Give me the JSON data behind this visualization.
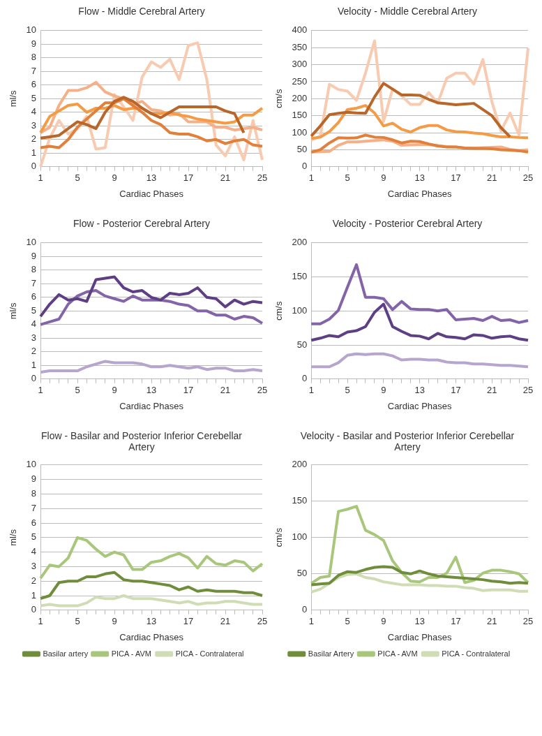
{
  "chart_data": [
    {
      "type": "line",
      "title": "Flow - Middle Cerebral Artery",
      "xlabel": "Cardiac Phases",
      "ylabel": "ml/s",
      "categories": [
        "1",
        null,
        null,
        null,
        "5",
        null,
        null,
        null,
        "9",
        null,
        null,
        null,
        "13",
        null,
        null,
        null,
        "17",
        null,
        null,
        null,
        "21",
        null,
        null,
        null,
        "25"
      ],
      "ylim": [
        0,
        10
      ],
      "yticks": [
        0,
        1,
        2,
        3,
        4,
        5,
        6,
        7,
        8,
        9,
        10
      ],
      "grid": "y",
      "series": [
        {
          "color": "#b8662a",
          "values": [
            2.1,
            2.2,
            2.3,
            2.8,
            3.3,
            3.1,
            2.8,
            4.0,
            4.8,
            5.1,
            4.8,
            4.3,
            3.9,
            3.6,
            4.0,
            4.4,
            4.4,
            4.4,
            4.4,
            4.4,
            4.1,
            3.9,
            2.5,
            null,
            null
          ]
        },
        {
          "color": "#e0803a",
          "values": [
            1.4,
            1.5,
            1.4,
            2.0,
            2.9,
            3.5,
            4.1,
            4.7,
            4.7,
            5.0,
            4.5,
            4.0,
            3.4,
            3.1,
            2.5,
            2.4,
            2.4,
            2.2,
            1.9,
            2.0,
            1.7,
            1.9,
            2.0,
            1.6,
            1.5
          ]
        },
        {
          "color": "#f59a45",
          "values": [
            2.5,
            3.7,
            4.1,
            4.5,
            4.6,
            4.0,
            4.3,
            4.3,
            4.5,
            4.2,
            4.3,
            4.3,
            3.9,
            3.9,
            4.0,
            3.8,
            3.7,
            3.5,
            3.4,
            3.3,
            3.2,
            3.3,
            3.8,
            3.8,
            4.3
          ]
        },
        {
          "color": "#f5b088",
          "values": [
            2.5,
            2.9,
            4.5,
            5.6,
            5.6,
            5.8,
            6.2,
            5.5,
            5.2,
            5.0,
            4.6,
            4.8,
            4.2,
            4.1,
            3.8,
            3.9,
            3.3,
            3.3,
            3.3,
            2.9,
            2.9,
            2.7,
            2.8,
            2.9,
            2.7
          ]
        },
        {
          "color": "#f8cbb0",
          "values": [
            0,
            2.1,
            3.4,
            2.4,
            2.8,
            3.7,
            1.3,
            1.4,
            5.3,
            4.4,
            3.4,
            6.6,
            7.7,
            7.3,
            7.9,
            6.4,
            8.9,
            9.1,
            6.4,
            1.6,
            0.8,
            2.2,
            0.5,
            3.4,
            0.5
          ]
        }
      ]
    },
    {
      "type": "line",
      "title": "Velocity - Middle Cerebral Artery",
      "xlabel": "Cardiac Phases",
      "ylabel": "cm/s",
      "categories": [
        "1",
        null,
        null,
        null,
        "5",
        null,
        null,
        null,
        "9",
        null,
        null,
        null,
        "13",
        null,
        null,
        null,
        "17",
        null,
        null,
        null,
        "21",
        null,
        null,
        null,
        "25"
      ],
      "ylim": [
        0,
        400
      ],
      "yticks": [
        0,
        50,
        100,
        150,
        200,
        250,
        300,
        350,
        400
      ],
      "grid": "y",
      "series": [
        {
          "color": "#b8662a",
          "values": [
            90,
            120,
            153,
            157,
            160,
            158,
            157,
            205,
            245,
            228,
            211,
            211,
            210,
            198,
            188,
            185,
            182,
            184,
            186,
            168,
            150,
            115,
            88,
            null,
            null
          ]
        },
        {
          "color": "#e0803a",
          "values": [
            43,
            50,
            70,
            85,
            84,
            85,
            93,
            87,
            86,
            79,
            70,
            75,
            74,
            67,
            61,
            58,
            58,
            55,
            54,
            54,
            53,
            50,
            49,
            47,
            43
          ]
        },
        {
          "color": "#f59a45",
          "values": [
            83,
            87,
            103,
            130,
            168,
            172,
            180,
            158,
            120,
            128,
            110,
            102,
            115,
            121,
            121,
            108,
            103,
            102,
            99,
            97,
            92,
            88,
            88,
            86,
            85
          ]
        },
        {
          "color": "#f5b088",
          "values": [
            43,
            44,
            45,
            63,
            73,
            73,
            75,
            77,
            79,
            75,
            63,
            64,
            65,
            65,
            62,
            59,
            58,
            55,
            55,
            56,
            57,
            58,
            51,
            48,
            50
          ]
        },
        {
          "color": "#f8cbb0",
          "values": [
            78,
            90,
            242,
            227,
            222,
            195,
            275,
            370,
            133,
            228,
            208,
            183,
            183,
            218,
            187,
            260,
            275,
            275,
            243,
            315,
            190,
            105,
            158,
            93,
            348
          ]
        }
      ]
    },
    {
      "type": "line",
      "title": "Flow - Posterior Cerebral Artery",
      "xlabel": "Cardiac Phases",
      "ylabel": "ml/s",
      "categories": [
        "1",
        null,
        null,
        null,
        "5",
        null,
        null,
        null,
        "9",
        null,
        null,
        null,
        "13",
        null,
        null,
        null,
        "17",
        null,
        null,
        null,
        "21",
        null,
        null,
        null,
        "25"
      ],
      "ylim": [
        0,
        10
      ],
      "yticks": [
        0,
        1,
        2,
        3,
        4,
        5,
        6,
        7,
        8,
        9,
        10
      ],
      "grid": "y",
      "series": [
        {
          "color": "#5e3f86",
          "values": [
            4.6,
            5.5,
            6.2,
            5.8,
            5.9,
            5.7,
            7.3,
            7.4,
            7.5,
            6.7,
            6.4,
            6.5,
            6.0,
            5.8,
            6.3,
            6.2,
            6.3,
            6.7,
            6.0,
            5.9,
            5.3,
            5.8,
            5.5,
            5.7,
            5.6
          ]
        },
        {
          "color": "#8464a8",
          "values": [
            4.0,
            4.2,
            4.4,
            5.5,
            6.1,
            6.4,
            6.5,
            6.1,
            5.9,
            5.7,
            6.1,
            5.8,
            5.8,
            5.8,
            5.7,
            5.5,
            5.4,
            5.0,
            5.0,
            4.7,
            4.7,
            4.4,
            4.6,
            4.5,
            4.1
          ]
        },
        {
          "color": "#b6a5cc",
          "values": [
            0.5,
            0.6,
            0.6,
            0.6,
            0.6,
            0.9,
            1.1,
            1.3,
            1.2,
            1.2,
            1.2,
            1.1,
            0.9,
            0.9,
            1.0,
            0.9,
            0.8,
            0.9,
            0.7,
            0.8,
            0.8,
            0.6,
            0.6,
            0.7,
            0.6
          ]
        }
      ]
    },
    {
      "type": "line",
      "title": "Velocity - Posterior Cerebral Artery",
      "xlabel": "Cardiac Phases",
      "ylabel": "cm/s",
      "categories": [
        "1",
        null,
        null,
        null,
        "5",
        null,
        null,
        null,
        "9",
        null,
        null,
        null,
        "13",
        null,
        null,
        null,
        "17",
        null,
        null,
        null,
        "21",
        null,
        null,
        null,
        "25"
      ],
      "ylim": [
        0,
        200
      ],
      "yticks": [
        0,
        50,
        100,
        150,
        200
      ],
      "grid": "y",
      "series": [
        {
          "color": "#5e3f86",
          "values": [
            57,
            60,
            64,
            62,
            69,
            71,
            77,
            98,
            110,
            77,
            70,
            64,
            63,
            59,
            67,
            62,
            61,
            59,
            65,
            64,
            60,
            62,
            63,
            59,
            57
          ]
        },
        {
          "color": "#8464a8",
          "values": [
            81,
            81,
            88,
            101,
            135,
            168,
            120,
            120,
            118,
            102,
            114,
            103,
            102,
            102,
            100,
            102,
            87,
            88,
            89,
            86,
            92,
            86,
            87,
            83,
            86
          ]
        },
        {
          "color": "#b6a5cc",
          "values": [
            18,
            18,
            18,
            24,
            35,
            37,
            36,
            37,
            37,
            34,
            28,
            29,
            29,
            28,
            28,
            25,
            24,
            24,
            22,
            22,
            21,
            20,
            20,
            19,
            18
          ]
        }
      ]
    },
    {
      "type": "line",
      "title": "Flow - Basilar and Posterior Inferior Cerebellar Artery",
      "xlabel": "Cardiac Phases",
      "ylabel": "ml/s",
      "categories": [
        "1",
        null,
        null,
        null,
        "5",
        null,
        null,
        null,
        "9",
        null,
        null,
        null,
        "13",
        null,
        null,
        null,
        "17",
        null,
        null,
        null,
        "21",
        null,
        null,
        null,
        "25"
      ],
      "ylim": [
        0,
        10
      ],
      "yticks": [
        0,
        1,
        2,
        3,
        4,
        5,
        6,
        7,
        8,
        9,
        10
      ],
      "grid": "y",
      "legend": "bottom",
      "series": [
        {
          "name": "Basilar artery",
          "color": "#6f8d3a",
          "values": [
            0.8,
            1.0,
            1.9,
            2.0,
            2.0,
            2.3,
            2.3,
            2.5,
            2.6,
            2.1,
            2.0,
            2.0,
            1.9,
            1.8,
            1.7,
            1.4,
            1.6,
            1.3,
            1.4,
            1.3,
            1.3,
            1.3,
            1.2,
            1.2,
            1.0
          ]
        },
        {
          "name": "PICA - AVM",
          "color": "#a8c77a",
          "values": [
            2.2,
            3.1,
            3.0,
            3.6,
            5.0,
            4.8,
            4.2,
            3.7,
            4.0,
            3.8,
            2.8,
            2.8,
            3.3,
            3.4,
            3.7,
            3.9,
            3.6,
            2.9,
            3.7,
            3.2,
            3.1,
            3.4,
            3.3,
            2.7,
            3.2
          ]
        },
        {
          "name": "PICA - Contralateral",
          "color": "#cfdcb4",
          "values": [
            0.3,
            0.4,
            0.3,
            0.3,
            0.3,
            0.5,
            0.9,
            0.8,
            0.8,
            1.0,
            0.8,
            0.8,
            0.8,
            0.7,
            0.6,
            0.5,
            0.6,
            0.4,
            0.5,
            0.5,
            0.6,
            0.6,
            0.5,
            0.4,
            0.4
          ]
        }
      ]
    },
    {
      "type": "line",
      "title": "Velocity - Basilar and Posterior Inferior Cerebellar Artery",
      "xlabel": "Cardiac Phases",
      "ylabel": "cm/s",
      "categories": [
        "1",
        null,
        null,
        null,
        "5",
        null,
        null,
        null,
        "9",
        null,
        null,
        null,
        "13",
        null,
        null,
        null,
        "17",
        null,
        null,
        null,
        "21",
        null,
        null,
        null,
        "25"
      ],
      "ylim": [
        0,
        200
      ],
      "yticks": [
        0,
        50,
        100,
        150,
        200
      ],
      "grid": "y",
      "legend": "bottom",
      "series": [
        {
          "name": "Basilar Artery",
          "color": "#6f8d3a",
          "values": [
            35,
            36,
            37,
            48,
            53,
            52,
            56,
            59,
            60,
            59,
            52,
            50,
            54,
            50,
            47,
            46,
            45,
            44,
            43,
            42,
            40,
            39,
            37,
            38,
            37
          ]
        },
        {
          "name": "PICA - AVM",
          "color": "#a8c77a",
          "values": [
            37,
            45,
            47,
            136,
            139,
            143,
            110,
            104,
            96,
            68,
            52,
            40,
            39,
            45,
            45,
            51,
            73,
            38,
            41,
            51,
            55,
            55,
            53,
            50,
            38
          ]
        },
        {
          "name": "PICA - Contralateral",
          "color": "#cfdcb4",
          "values": [
            25,
            29,
            37,
            45,
            49,
            50,
            45,
            43,
            39,
            37,
            35,
            35,
            35,
            34,
            34,
            33,
            33,
            31,
            30,
            27,
            28,
            28,
            28,
            26,
            26
          ]
        }
      ]
    }
  ]
}
